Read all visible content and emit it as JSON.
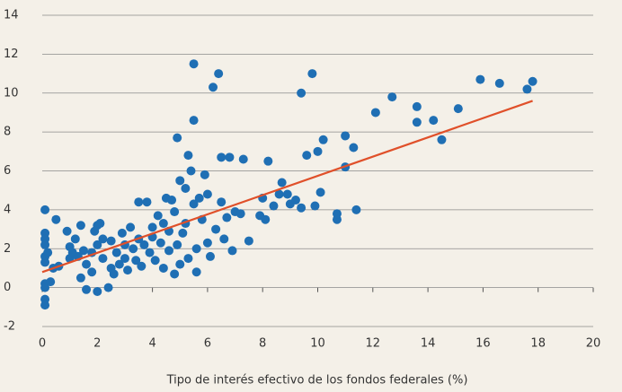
{
  "chart_data": {
    "type": "scatter",
    "x_label": "Tipo de interés efectivo de los fondos federales (%)",
    "xlim": [
      0,
      20
    ],
    "xticks": [
      0,
      2,
      4,
      6,
      8,
      10,
      12,
      14,
      16,
      18,
      20
    ],
    "ylim": [
      -2,
      14
    ],
    "yticks": [
      -2,
      0,
      2,
      4,
      6,
      8,
      10,
      12,
      14
    ],
    "grid": true,
    "series": [
      {
        "color": "#1f6fb4",
        "x": [
          0.1,
          0.1,
          0.1,
          0.1,
          0.1,
          0.1,
          0.1,
          0.1,
          0.1,
          0.1,
          0.2,
          0.3,
          0.4,
          0.5,
          0.6,
          0.9,
          1.0,
          1.0,
          1.1,
          1.2,
          1.3,
          1.4,
          1.4,
          1.5,
          1.6,
          1.6,
          1.8,
          1.8,
          1.9,
          2.0,
          2.0,
          2.0,
          2.1,
          2.2,
          2.2,
          2.4,
          2.5,
          2.5,
          2.6,
          2.7,
          2.8,
          2.9,
          3.0,
          3.0,
          3.1,
          3.2,
          3.3,
          3.4,
          3.5,
          3.5,
          3.6,
          3.7,
          3.8,
          3.9,
          4.0,
          4.0,
          4.1,
          4.2,
          4.3,
          4.4,
          4.4,
          4.5,
          4.6,
          4.6,
          4.7,
          4.8,
          4.8,
          4.9,
          4.9,
          5.0,
          5.0,
          5.1,
          5.2,
          5.2,
          5.3,
          5.3,
          5.4,
          5.5,
          5.5,
          5.5,
          5.6,
          5.6,
          5.7,
          5.8,
          5.9,
          6.0,
          6.0,
          6.1,
          6.2,
          6.3,
          6.4,
          6.5,
          6.5,
          6.6,
          6.7,
          6.8,
          6.9,
          7.0,
          7.2,
          7.3,
          7.5,
          7.9,
          8.0,
          8.1,
          8.2,
          8.4,
          8.6,
          8.7,
          8.9,
          9.0,
          9.2,
          9.4,
          9.4,
          9.6,
          9.8,
          9.9,
          10.0,
          10.1,
          10.2,
          10.7,
          10.7,
          11.0,
          11.0,
          11.3,
          11.4,
          12.1,
          12.7,
          13.6,
          13.6,
          14.2,
          14.5,
          15.1,
          15.9,
          16.6,
          17.6,
          17.8
        ],
        "y": [
          4.0,
          2.8,
          2.5,
          2.2,
          1.6,
          1.3,
          0.2,
          0,
          -0.6,
          -0.9,
          1.8,
          0.3,
          1.0,
          3.5,
          1.1,
          2.9,
          2.1,
          1.5,
          1.8,
          2.5,
          1.6,
          3.2,
          0.5,
          1.9,
          1.2,
          -0.1,
          1.8,
          0.8,
          2.9,
          3.2,
          2.2,
          -0.2,
          3.3,
          2.5,
          1.5,
          0.0,
          1.0,
          2.4,
          0.7,
          1.8,
          1.2,
          2.8,
          1.5,
          2.2,
          0.9,
          3.1,
          2.0,
          1.4,
          2.5,
          4.4,
          1.1,
          2.2,
          4.4,
          1.8,
          2.6,
          3.1,
          1.4,
          3.7,
          2.3,
          1.0,
          3.3,
          4.6,
          1.9,
          2.9,
          4.5,
          0.7,
          3.9,
          7.7,
          2.2,
          5.5,
          1.2,
          2.8,
          3.3,
          5.1,
          6.8,
          1.5,
          6.0,
          11.5,
          8.6,
          4.3,
          0.8,
          2.0,
          4.6,
          3.5,
          5.8,
          4.8,
          2.3,
          1.6,
          10.3,
          3.0,
          11.0,
          6.7,
          4.4,
          2.5,
          3.6,
          6.7,
          1.9,
          3.9,
          3.8,
          6.6,
          2.4,
          3.7,
          4.6,
          3.5,
          6.5,
          4.2,
          4.8,
          5.4,
          4.8,
          4.3,
          4.5,
          10.0,
          4.1,
          6.8,
          11.0,
          4.2,
          7.0,
          4.9,
          7.6,
          3.5,
          3.8,
          7.8,
          6.2,
          7.2,
          4.0,
          9.0,
          9.8,
          9.3,
          8.5,
          8.6,
          7.6,
          9.2,
          10.7,
          10.5,
          10.2,
          10.6
        ]
      }
    ],
    "trend_line": {
      "color": "#e0502a",
      "x": [
        0,
        17.8
      ],
      "y": [
        0.8,
        9.6
      ]
    }
  }
}
